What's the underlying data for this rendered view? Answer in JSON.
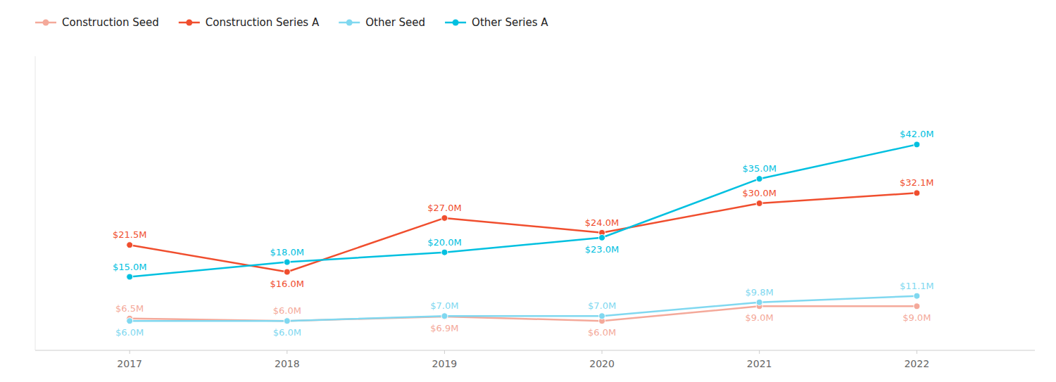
{
  "chart_data": {
    "type": "line",
    "x": [
      2017,
      2018,
      2019,
      2020,
      2021,
      2022
    ],
    "xlim": [
      2016.4,
      2022.75
    ],
    "xticks": [
      2017,
      2018,
      2019,
      2020,
      2021,
      2022
    ],
    "ylim": [
      0,
      60
    ],
    "tick_labels": "x",
    "grid": false,
    "legend": "upper left",
    "data_labels": true,
    "series": [
      {
        "name": "Construction Seed",
        "color": "#F4A99A",
        "marker": "circle",
        "line_style": "solid",
        "values": [
          6.5,
          6.0,
          6.9,
          6.0,
          9.0,
          9.0
        ],
        "value_labels": [
          "$6.5M",
          "$6.0M",
          "$6.9M",
          "$6.0M",
          "$9.0M",
          "$9.0M"
        ]
      },
      {
        "name": "Construction Series A",
        "color": "#F04E2E",
        "marker": "circle",
        "line_style": "solid",
        "values": [
          21.5,
          16.0,
          27.0,
          24.0,
          30.0,
          32.1
        ],
        "value_labels": [
          "$21.5M",
          "$16.0M",
          "$27.0M",
          "$24.0M",
          "$30.0M",
          "$32.1M"
        ]
      },
      {
        "name": "Other Seed",
        "color": "#80D8F0",
        "marker": "circle",
        "line_style": "solid",
        "values": [
          6.0,
          6.0,
          7.0,
          7.0,
          9.8,
          11.1
        ],
        "value_labels": [
          "$6.0M",
          "$6.0M",
          "$7.0M",
          "$7.0M",
          "$9.8M",
          "$11.1M"
        ]
      },
      {
        "name": "Other Series A",
        "color": "#00C0E0",
        "marker": "circle",
        "line_style": "solid",
        "values": [
          15.0,
          18.0,
          20.0,
          23.0,
          35.0,
          42.0
        ],
        "value_labels": [
          "$15.0M",
          "$18.0M",
          "$20.0M",
          "$23.0M",
          "$35.0M",
          "$42.0M"
        ]
      }
    ]
  }
}
